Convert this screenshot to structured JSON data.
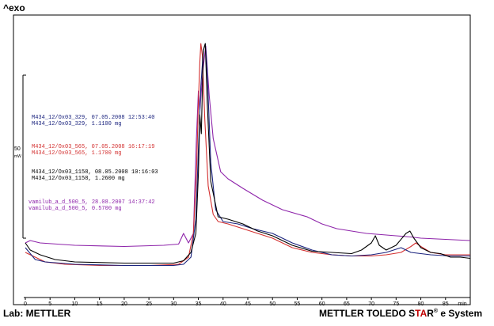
{
  "header": {
    "exo": "^exo"
  },
  "footer": {
    "lab": "Lab: METTLER",
    "system_prefix": "METTLER TOLEDO S",
    "system_red": "TA",
    "system_r": "R",
    "system_suffix": "e System"
  },
  "scale_bar": {
    "value": "50",
    "unit": "mW"
  },
  "chart_data": {
    "type": "line",
    "x_unit": "min",
    "xlim": [
      0,
      90
    ],
    "x_ticks": [
      "0",
      "5",
      "10",
      "15",
      "20",
      "25",
      "30",
      "35",
      "40",
      "45",
      "50",
      "55",
      "60",
      "65",
      "70",
      "75",
      "80",
      "85",
      "min"
    ],
    "x_tick_values": [
      0,
      5,
      10,
      15,
      20,
      25,
      30,
      35,
      40,
      45,
      50,
      55,
      60,
      65,
      70,
      75,
      80,
      85
    ],
    "ylim": [
      0,
      100
    ],
    "legend": [
      {
        "line1": "M434_12/Ox03_329, 07.05.2008 12:53:40",
        "line2": "M434_12/Ox03_329, 1.1100 mg",
        "color": "#1a237e"
      },
      {
        "line1": "M434_12/Ox03_565, 07.05.2008 16:17:19",
        "line2": "M434_12/Ox03_565, 1.1700 mg",
        "color": "#d32f2f"
      },
      {
        "line1": "M434_12/Ox03_1158, 08.05.2008 10:16:03",
        "line2": "M434_12/Ox03_1158, 1.2600 mg",
        "color": "#000000"
      },
      {
        "line1": "vamilub_a_d_500_5, 28.08.2007 14:37:42",
        "line2": "vamilub_a_d_500_5, 0.5700 mg",
        "color": "#8e24aa"
      }
    ],
    "series": [
      {
        "color": "#8e24aa",
        "points": [
          [
            0,
            16
          ],
          [
            1,
            17
          ],
          [
            3,
            16
          ],
          [
            10,
            15
          ],
          [
            20,
            14.5
          ],
          [
            28,
            15
          ],
          [
            31,
            15.5
          ],
          [
            32,
            20
          ],
          [
            33,
            16
          ],
          [
            34,
            20
          ],
          [
            34.6,
            60
          ],
          [
            35,
            80
          ],
          [
            35.3,
            72
          ],
          [
            36,
            90
          ],
          [
            36.5,
            99
          ],
          [
            37.2,
            78
          ],
          [
            38,
            60
          ],
          [
            39.5,
            46
          ],
          [
            41,
            43
          ],
          [
            44,
            39
          ],
          [
            48,
            34
          ],
          [
            52,
            30
          ],
          [
            57,
            27
          ],
          [
            60,
            24
          ],
          [
            63,
            22
          ],
          [
            66,
            21
          ],
          [
            69,
            20
          ],
          [
            72,
            19.5
          ],
          [
            75,
            19
          ],
          [
            78,
            18.5
          ],
          [
            80,
            18
          ],
          [
            85,
            17.5
          ],
          [
            90,
            17
          ]
        ]
      },
      {
        "color": "#d32f2f",
        "points": [
          [
            0,
            12
          ],
          [
            2,
            10
          ],
          [
            4,
            8
          ],
          [
            8,
            7
          ],
          [
            15,
            6.5
          ],
          [
            25,
            6.5
          ],
          [
            31,
            7
          ],
          [
            33,
            10
          ],
          [
            34,
            20
          ],
          [
            34.6,
            45
          ],
          [
            35,
            75
          ],
          [
            35.3,
            92
          ],
          [
            35.5,
            100
          ],
          [
            35.8,
            95
          ],
          [
            36.3,
            68
          ],
          [
            37,
            40
          ],
          [
            38,
            28
          ],
          [
            39,
            25
          ],
          [
            41,
            24
          ],
          [
            44,
            22
          ],
          [
            47,
            20
          ],
          [
            50,
            18
          ],
          [
            54,
            14
          ],
          [
            58,
            12
          ],
          [
            62,
            11
          ],
          [
            66,
            10.5
          ],
          [
            70,
            10.5
          ],
          [
            73,
            11
          ],
          [
            76,
            12
          ],
          [
            78,
            14.5
          ],
          [
            79,
            16
          ],
          [
            80,
            14.5
          ],
          [
            82,
            12
          ],
          [
            85,
            11
          ],
          [
            90,
            11
          ]
        ]
      },
      {
        "color": "#1a237e",
        "points": [
          [
            0,
            14
          ],
          [
            2,
            9
          ],
          [
            4,
            8
          ],
          [
            10,
            7
          ],
          [
            20,
            6.5
          ],
          [
            30,
            6.5
          ],
          [
            32,
            7
          ],
          [
            33.5,
            10
          ],
          [
            34.5,
            26
          ],
          [
            35,
            55
          ],
          [
            35.5,
            82
          ],
          [
            36,
            97
          ],
          [
            36.4,
            100
          ],
          [
            36.8,
            88
          ],
          [
            37.5,
            50
          ],
          [
            38.5,
            30
          ],
          [
            40,
            25
          ],
          [
            43,
            24
          ],
          [
            46,
            22
          ],
          [
            50,
            20
          ],
          [
            54,
            16
          ],
          [
            58,
            13
          ],
          [
            62,
            11
          ],
          [
            66,
            10.5
          ],
          [
            70,
            11
          ],
          [
            73,
            12
          ],
          [
            76,
            14
          ],
          [
            78,
            12
          ],
          [
            82,
            11
          ],
          [
            86,
            10.5
          ],
          [
            90,
            10.5
          ]
        ]
      },
      {
        "color": "#000000",
        "points": [
          [
            0,
            16
          ],
          [
            1,
            13
          ],
          [
            3,
            11
          ],
          [
            6,
            9
          ],
          [
            10,
            8
          ],
          [
            20,
            7.5
          ],
          [
            30,
            7.5
          ],
          [
            32,
            8.5
          ],
          [
            33.5,
            12
          ],
          [
            34.5,
            20
          ],
          [
            35,
            45
          ],
          [
            35.3,
            70
          ],
          [
            35.6,
            62
          ],
          [
            36,
            97
          ],
          [
            36.4,
            100
          ],
          [
            36.8,
            75
          ],
          [
            37.5,
            42
          ],
          [
            39,
            27
          ],
          [
            41,
            26
          ],
          [
            44,
            24
          ],
          [
            47,
            21
          ],
          [
            50,
            19
          ],
          [
            54,
            15
          ],
          [
            58,
            12.5
          ],
          [
            62,
            12
          ],
          [
            66,
            11.5
          ],
          [
            68,
            13
          ],
          [
            70,
            16
          ],
          [
            70.8,
            19
          ],
          [
            71.6,
            15
          ],
          [
            73,
            13
          ],
          [
            75,
            15
          ],
          [
            77,
            20
          ],
          [
            77.8,
            21
          ],
          [
            78.6,
            18
          ],
          [
            80,
            14
          ],
          [
            82,
            12
          ],
          [
            84,
            11.5
          ],
          [
            86,
            10
          ],
          [
            88,
            10
          ],
          [
            90,
            9.5
          ]
        ]
      }
    ]
  }
}
